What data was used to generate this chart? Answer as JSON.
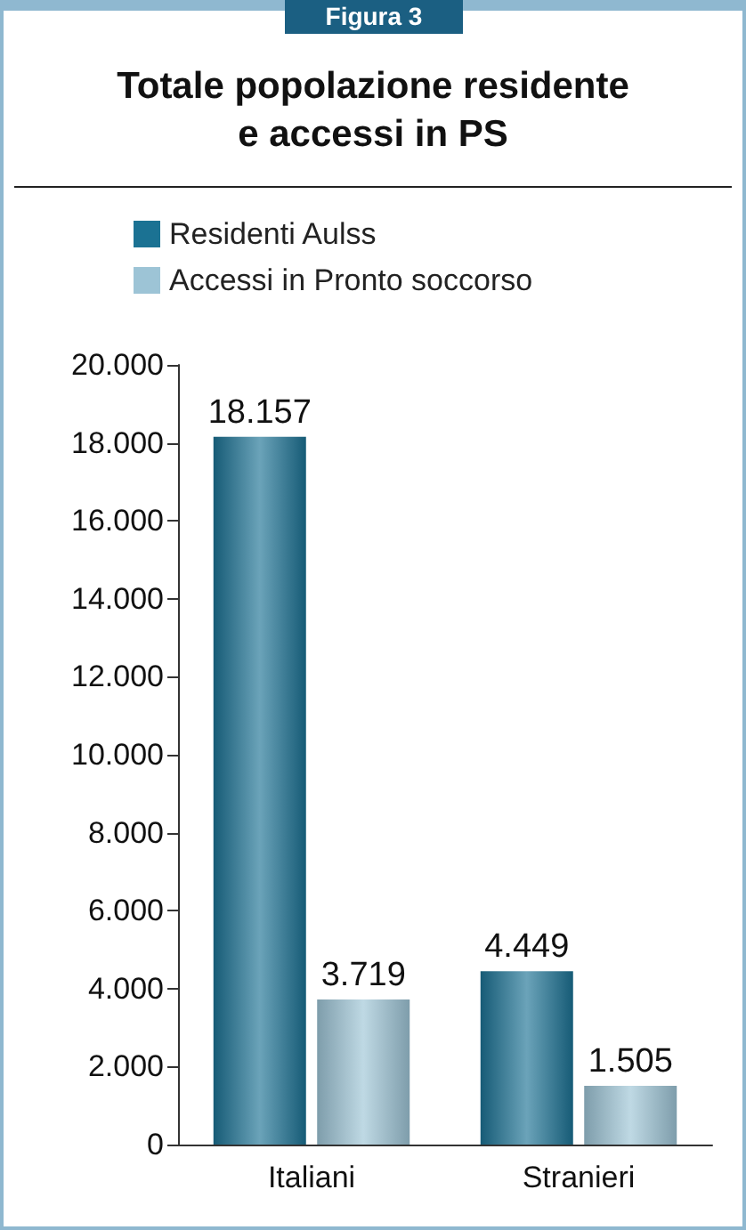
{
  "chart_data": {
    "type": "bar",
    "title": "Totale popolazione residente\ne accessi in PS",
    "annotations": [
      "Figura 3"
    ],
    "categories": [
      "Italiani",
      "Stranieri"
    ],
    "series": [
      {
        "name": "Residenti Aulss",
        "color": "#1b7293",
        "values": [
          18157,
          4449
        ],
        "value_labels": [
          "18.157",
          "4.449"
        ]
      },
      {
        "name": "Accessi in Pronto soccorso",
        "color": "#9dc4d6",
        "values": [
          3719,
          1505
        ],
        "value_labels": [
          "3.719",
          "1.505"
        ]
      }
    ],
    "ylim": [
      0,
      20000
    ],
    "yticks": [
      {
        "value": 0,
        "label": "0"
      },
      {
        "value": 2000,
        "label": "2.000"
      },
      {
        "value": 4000,
        "label": "4.000"
      },
      {
        "value": 6000,
        "label": "6.000"
      },
      {
        "value": 8000,
        "label": "8.000"
      },
      {
        "value": 10000,
        "label": "10.000"
      },
      {
        "value": 12000,
        "label": "12.000"
      },
      {
        "value": 14000,
        "label": "14.000"
      },
      {
        "value": 16000,
        "label": "16.000"
      },
      {
        "value": 18000,
        "label": "18.000"
      },
      {
        "value": 20000,
        "label": "20.000"
      }
    ],
    "legend": "top left",
    "grid": false
  }
}
